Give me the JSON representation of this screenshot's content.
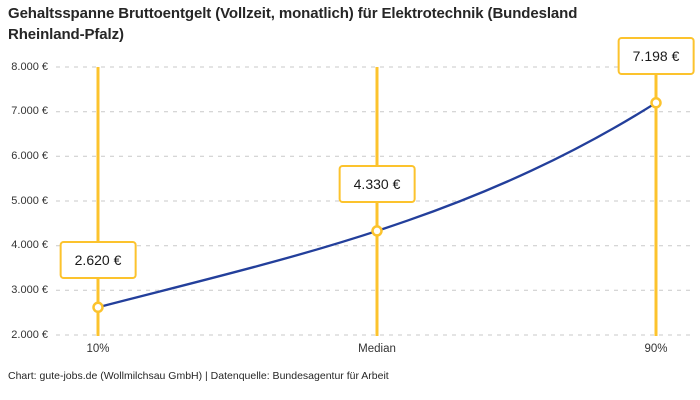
{
  "chart_data": {
    "type": "line",
    "title": "Gehaltsspanne Bruttoentgelt (Vollzeit, monatlich) für Elektrotechnik (Bundesland Rheinland-Pfalz)",
    "source_note": "Chart: gute-jobs.de (Wollmilchsau GmbH) | Datenquelle: Bundesagentur für Arbeit",
    "categories": [
      "10%",
      "Median",
      "90%"
    ],
    "values": [
      2620,
      4330,
      7198
    ],
    "value_labels": [
      "2.620 €",
      "4.330 €",
      "7.198 €"
    ],
    "unit": "€",
    "ylim": [
      2000,
      8000
    ],
    "y_tick_values": [
      2000,
      3000,
      4000,
      5000,
      6000,
      7000,
      8000
    ],
    "y_tick_labels": [
      "2.000 €",
      "3.000 €",
      "4.000 €",
      "5.000 €",
      "6.000 €",
      "7.000 €",
      "8.000 €"
    ],
    "xlabel": "",
    "ylabel": "",
    "grid": "horizontal-dashed",
    "legend": "none"
  },
  "colors": {
    "marker_yellow": "#FCC32D",
    "curve_blue": "#233F9B",
    "grid_gray": "#C9C9C9",
    "text_dark": "#262626",
    "background": "#FFFFFF"
  }
}
